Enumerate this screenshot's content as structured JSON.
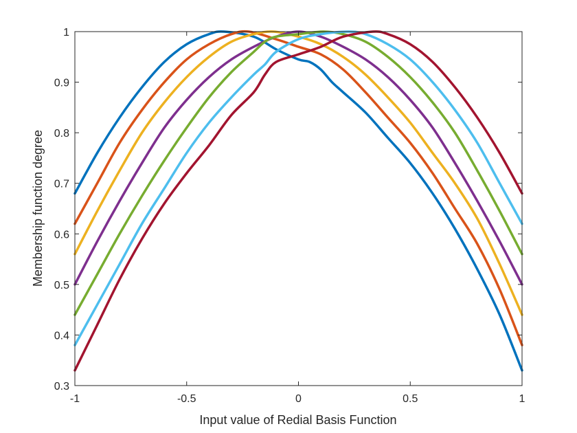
{
  "chart_data": {
    "type": "line",
    "xlabel": "Input value of Redial Basis Function",
    "ylabel": "Membership function degree",
    "xlim": [
      -1,
      1
    ],
    "ylim": [
      0.3,
      1
    ],
    "xticks": [
      {
        "value": -1,
        "label": "-1"
      },
      {
        "value": -0.5,
        "label": "-0.5"
      },
      {
        "value": 0,
        "label": "0"
      },
      {
        "value": 0.5,
        "label": "0.5"
      },
      {
        "value": 1,
        "label": "1"
      }
    ],
    "yticks": [
      {
        "value": 0.3,
        "label": "0.3"
      },
      {
        "value": 0.4,
        "label": "0.4"
      },
      {
        "value": 0.5,
        "label": "0.5"
      },
      {
        "value": 0.6,
        "label": "0.6"
      },
      {
        "value": 0.7,
        "label": "0.7"
      },
      {
        "value": 0.8,
        "label": "0.8"
      },
      {
        "value": 0.9,
        "label": "0.9"
      },
      {
        "value": 1,
        "label": "1"
      }
    ],
    "grid": false,
    "series": [
      {
        "color": "#0072BD",
        "x": [
          -1,
          -0.9,
          -0.8,
          -0.7,
          -0.6,
          -0.5,
          -0.4,
          -0.333,
          -0.2,
          -0.1,
          0,
          0.05,
          0.1,
          0.15,
          0.2,
          0.3,
          0.4,
          0.5,
          0.6,
          0.7,
          0.8,
          0.9,
          1
        ],
        "y": [
          0.68,
          0.76,
          0.83,
          0.89,
          0.94,
          0.975,
          0.995,
          1.0,
          0.99,
          0.965,
          0.945,
          0.94,
          0.925,
          0.9,
          0.88,
          0.84,
          0.79,
          0.74,
          0.68,
          0.61,
          0.53,
          0.44,
          0.33
        ]
      },
      {
        "color": "#D95319",
        "x": [
          -1,
          -0.9,
          -0.8,
          -0.7,
          -0.6,
          -0.5,
          -0.4,
          -0.3,
          -0.222,
          -0.1,
          0,
          0.1,
          0.2,
          0.3,
          0.4,
          0.5,
          0.6,
          0.7,
          0.8,
          0.9,
          1
        ],
        "y": [
          0.62,
          0.7,
          0.78,
          0.845,
          0.9,
          0.945,
          0.975,
          0.995,
          1.0,
          0.985,
          0.97,
          0.955,
          0.925,
          0.88,
          0.83,
          0.78,
          0.72,
          0.65,
          0.58,
          0.49,
          0.38
        ]
      },
      {
        "color": "#EDB120",
        "x": [
          -1,
          -0.9,
          -0.8,
          -0.7,
          -0.6,
          -0.5,
          -0.4,
          -0.3,
          -0.2,
          -0.111,
          0,
          0.1,
          0.2,
          0.3,
          0.4,
          0.5,
          0.6,
          0.7,
          0.8,
          0.9,
          1
        ],
        "y": [
          0.56,
          0.645,
          0.725,
          0.8,
          0.86,
          0.91,
          0.95,
          0.98,
          0.995,
          1.0,
          0.99,
          0.975,
          0.95,
          0.915,
          0.87,
          0.82,
          0.76,
          0.7,
          0.63,
          0.54,
          0.44
        ]
      },
      {
        "color": "#7E2F8E",
        "x": [
          -1,
          -0.9,
          -0.8,
          -0.7,
          -0.6,
          -0.5,
          -0.4,
          -0.3,
          -0.2,
          -0.1,
          0,
          0.1,
          0.2,
          0.3,
          0.4,
          0.5,
          0.6,
          0.7,
          0.8,
          0.9,
          1
        ],
        "y": [
          0.5,
          0.585,
          0.665,
          0.74,
          0.81,
          0.865,
          0.91,
          0.945,
          0.97,
          0.99,
          1.0,
          0.99,
          0.97,
          0.945,
          0.91,
          0.865,
          0.81,
          0.74,
          0.665,
          0.585,
          0.5
        ]
      },
      {
        "color": "#77AC30",
        "x": [
          -1,
          -0.9,
          -0.8,
          -0.7,
          -0.6,
          -0.5,
          -0.4,
          -0.3,
          -0.2,
          -0.15,
          -0.1,
          0,
          0.111,
          0.2,
          0.3,
          0.4,
          0.5,
          0.6,
          0.7,
          0.8,
          0.9,
          1
        ],
        "y": [
          0.44,
          0.52,
          0.6,
          0.675,
          0.745,
          0.81,
          0.87,
          0.92,
          0.96,
          0.98,
          0.99,
          0.995,
          1.0,
          0.995,
          0.98,
          0.95,
          0.91,
          0.86,
          0.8,
          0.725,
          0.645,
          0.56
        ]
      },
      {
        "color": "#4DBEEE",
        "x": [
          -1,
          -0.9,
          -0.8,
          -0.7,
          -0.6,
          -0.5,
          -0.4,
          -0.3,
          -0.2,
          -0.15,
          -0.1,
          0,
          0.1,
          0.222,
          0.3,
          0.4,
          0.5,
          0.6,
          0.7,
          0.8,
          0.9,
          1
        ],
        "y": [
          0.38,
          0.46,
          0.54,
          0.62,
          0.69,
          0.76,
          0.82,
          0.87,
          0.915,
          0.935,
          0.96,
          0.985,
          0.995,
          1.0,
          0.995,
          0.975,
          0.945,
          0.9,
          0.845,
          0.78,
          0.7,
          0.62
        ]
      },
      {
        "color": "#A2142F",
        "x": [
          -1,
          -0.9,
          -0.8,
          -0.7,
          -0.6,
          -0.5,
          -0.4,
          -0.3,
          -0.2,
          -0.15,
          -0.1,
          0,
          0.1,
          0.2,
          0.333,
          0.4,
          0.5,
          0.6,
          0.7,
          0.8,
          0.9,
          1
        ],
        "y": [
          0.33,
          0.42,
          0.51,
          0.59,
          0.66,
          0.72,
          0.775,
          0.835,
          0.88,
          0.915,
          0.94,
          0.955,
          0.97,
          0.99,
          1.0,
          0.995,
          0.975,
          0.94,
          0.89,
          0.83,
          0.76,
          0.68
        ]
      }
    ]
  }
}
